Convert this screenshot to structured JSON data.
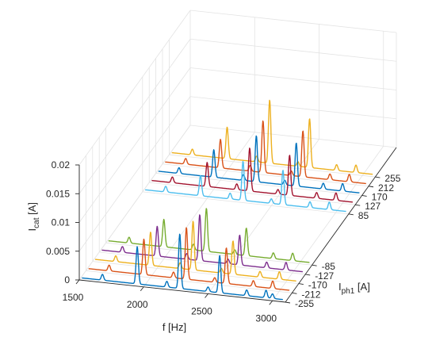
{
  "chart_data": {
    "type": "line",
    "view": "3d-waterfall",
    "grid": true,
    "xlabel": "f [Hz]",
    "ylabel": {
      "main": "I",
      "sub": "ph1",
      "unit": "[A]"
    },
    "zlabel": {
      "main": "I",
      "sub": "cat",
      "unit": "[A]"
    },
    "xlim": [
      1500,
      3100
    ],
    "zlim": [
      0,
      0.02
    ],
    "x_ticks": [
      "1500",
      "2000",
      "2500",
      "3000"
    ],
    "x_tick_values": [
      1500,
      2000,
      2500,
      3000
    ],
    "y_ticks": [
      "-255",
      "-212",
      "-170",
      "-127",
      "-85",
      "85",
      "127",
      "170",
      "212",
      "255"
    ],
    "z_ticks": [
      "0",
      "0.005",
      "0.01",
      "0.015",
      "0.02"
    ],
    "z_tick_values": [
      0,
      0.005,
      0.01,
      0.015,
      0.02
    ],
    "series": [
      {
        "y": -255,
        "color": "#0072BD",
        "baseline": 0.0004,
        "peaks": [
          [
            1680,
            0.001
          ],
          [
            1950,
            0.0065
          ],
          [
            2180,
            0.001
          ],
          [
            2280,
            0.0095
          ],
          [
            2500,
            0.0008
          ],
          [
            2590,
            0.0065
          ],
          [
            2800,
            0.001
          ],
          [
            2950,
            0.0013
          ],
          [
            3000,
            0.0008
          ]
        ]
      },
      {
        "y": -212,
        "color": "#D95319",
        "baseline": 0.0004,
        "peaks": [
          [
            1680,
            0.001
          ],
          [
            1950,
            0.0062
          ],
          [
            2180,
            0.001
          ],
          [
            2280,
            0.009
          ],
          [
            2500,
            0.0008
          ],
          [
            2590,
            0.0062
          ],
          [
            2800,
            0.001
          ],
          [
            2950,
            0.0013
          ]
        ]
      },
      {
        "y": -170,
        "color": "#EDB120",
        "baseline": 0.0004,
        "peaks": [
          [
            1680,
            0.001
          ],
          [
            1950,
            0.0058
          ],
          [
            2180,
            0.001
          ],
          [
            2280,
            0.0085
          ],
          [
            2500,
            0.0008
          ],
          [
            2590,
            0.0058
          ],
          [
            2800,
            0.001
          ],
          [
            2950,
            0.0013
          ]
        ]
      },
      {
        "y": -127,
        "color": "#7E2F8E",
        "baseline": 0.0004,
        "peaks": [
          [
            1680,
            0.001
          ],
          [
            1950,
            0.0052
          ],
          [
            2180,
            0.001
          ],
          [
            2280,
            0.008
          ],
          [
            2500,
            0.0008
          ],
          [
            2590,
            0.0052
          ],
          [
            2800,
            0.001
          ],
          [
            2950,
            0.0013
          ]
        ]
      },
      {
        "y": -85,
        "color": "#77AC30",
        "baseline": 0.0004,
        "peaks": [
          [
            1680,
            0.001
          ],
          [
            1950,
            0.0048
          ],
          [
            2180,
            0.001
          ],
          [
            2280,
            0.0075
          ],
          [
            2500,
            0.0008
          ],
          [
            2590,
            0.0048
          ],
          [
            2800,
            0.001
          ],
          [
            2950,
            0.0013
          ]
        ]
      },
      {
        "y": 85,
        "color": "#4DBEEE",
        "baseline": 0.0004,
        "peaks": [
          [
            1680,
            0.001
          ],
          [
            1950,
            0.0035
          ],
          [
            2180,
            0.001
          ],
          [
            2280,
            0.0068
          ],
          [
            2500,
            0.0008
          ],
          [
            2590,
            0.006
          ],
          [
            2800,
            0.001
          ],
          [
            2950,
            0.0013
          ]
        ]
      },
      {
        "y": 127,
        "color": "#A2142F",
        "baseline": 0.0004,
        "peaks": [
          [
            1680,
            0.001
          ],
          [
            1950,
            0.0042
          ],
          [
            2180,
            0.001
          ],
          [
            2280,
            0.0075
          ],
          [
            2500,
            0.0008
          ],
          [
            2590,
            0.007
          ],
          [
            2800,
            0.001
          ],
          [
            2950,
            0.0013
          ]
        ]
      },
      {
        "y": 170,
        "color": "#0072BD",
        "baseline": 0.0004,
        "peaks": [
          [
            1680,
            0.001
          ],
          [
            1950,
            0.0048
          ],
          [
            2180,
            0.001
          ],
          [
            2280,
            0.008
          ],
          [
            2500,
            0.0008
          ],
          [
            2590,
            0.0075
          ],
          [
            2800,
            0.001
          ],
          [
            2950,
            0.0013
          ]
        ]
      },
      {
        "y": 212,
        "color": "#D95319",
        "baseline": 0.0004,
        "peaks": [
          [
            1680,
            0.001
          ],
          [
            1950,
            0.005
          ],
          [
            2180,
            0.001
          ],
          [
            2280,
            0.009
          ],
          [
            2500,
            0.0008
          ],
          [
            2590,
            0.008
          ],
          [
            2800,
            0.001
          ],
          [
            2950,
            0.0013
          ]
        ]
      },
      {
        "y": 255,
        "color": "#EDB120",
        "baseline": 0.0004,
        "peaks": [
          [
            1680,
            0.001
          ],
          [
            1950,
            0.0055
          ],
          [
            2180,
            0.001
          ],
          [
            2280,
            0.011
          ],
          [
            2500,
            0.0008
          ],
          [
            2590,
            0.0085
          ],
          [
            2800,
            0.001
          ],
          [
            2950,
            0.0013
          ]
        ]
      }
    ]
  }
}
